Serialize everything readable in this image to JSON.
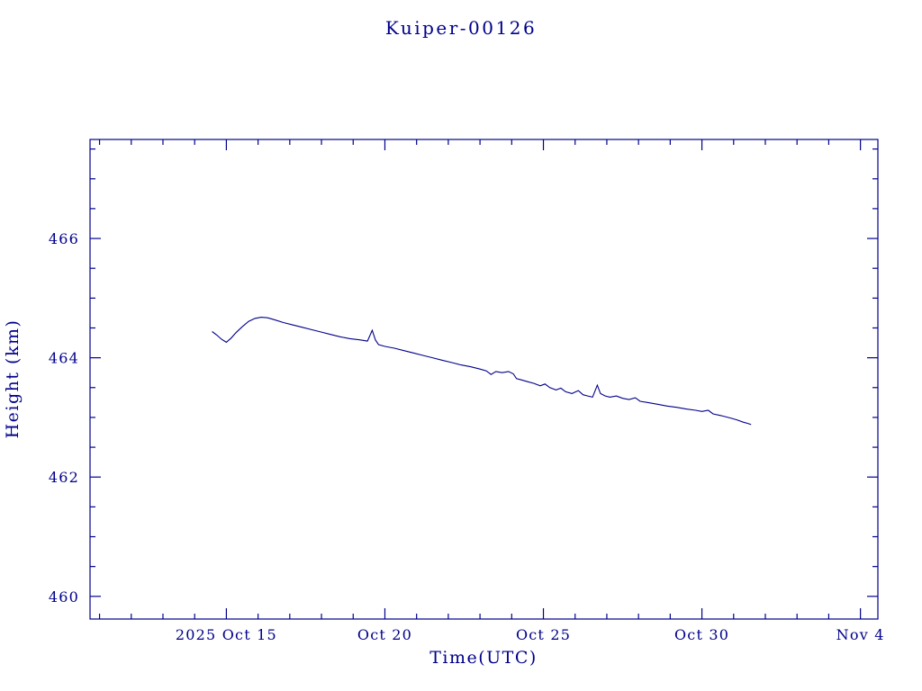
{
  "chart_data": {
    "type": "line",
    "title": "Kuiper-00126",
    "xlabel": "Time(UTC)",
    "ylabel": "Height (km)",
    "x_encoding": "day number, Oct 1 2025 = 1 (Nov 4 = 35)",
    "xlim": [
      10.7,
      35.55
    ],
    "ylim": [
      459.62,
      467.66
    ],
    "x_ticks": [
      {
        "value": 15,
        "label": "2025 Oct 15"
      },
      {
        "value": 20,
        "label": "Oct 20"
      },
      {
        "value": 25,
        "label": "Oct 25"
      },
      {
        "value": 30,
        "label": "Oct 30"
      },
      {
        "value": 35,
        "label": "Nov 4"
      }
    ],
    "y_ticks": [
      {
        "value": 460,
        "label": "460"
      },
      {
        "value": 462,
        "label": "462"
      },
      {
        "value": 464,
        "label": "464"
      },
      {
        "value": 466,
        "label": "466"
      }
    ],
    "x_minor_step": 1,
    "y_minor_step": 0.5,
    "grid": false,
    "legend": "none",
    "colors": {
      "line": "#00008b",
      "axis": "#00008b",
      "text": "#00008b",
      "background": "#ffffff"
    },
    "series": [
      {
        "name": "Kuiper-00126 height",
        "points": [
          [
            14.55,
            464.44
          ],
          [
            14.7,
            464.38
          ],
          [
            14.85,
            464.31
          ],
          [
            15.0,
            464.26
          ],
          [
            15.15,
            464.33
          ],
          [
            15.3,
            464.42
          ],
          [
            15.5,
            464.52
          ],
          [
            15.7,
            464.61
          ],
          [
            15.9,
            464.66
          ],
          [
            16.1,
            464.68
          ],
          [
            16.3,
            464.67
          ],
          [
            16.5,
            464.64
          ],
          [
            16.8,
            464.59
          ],
          [
            17.1,
            464.55
          ],
          [
            17.4,
            464.51
          ],
          [
            17.7,
            464.47
          ],
          [
            18.0,
            464.43
          ],
          [
            18.3,
            464.39
          ],
          [
            18.6,
            464.35
          ],
          [
            18.9,
            464.32
          ],
          [
            19.2,
            464.3
          ],
          [
            19.45,
            464.28
          ],
          [
            19.6,
            464.46
          ],
          [
            19.7,
            464.3
          ],
          [
            19.8,
            464.22
          ],
          [
            20.0,
            464.19
          ],
          [
            20.3,
            464.16
          ],
          [
            20.6,
            464.12
          ],
          [
            20.9,
            464.08
          ],
          [
            21.2,
            464.04
          ],
          [
            21.5,
            464.0
          ],
          [
            21.8,
            463.96
          ],
          [
            22.1,
            463.92
          ],
          [
            22.4,
            463.88
          ],
          [
            22.7,
            463.85
          ],
          [
            23.0,
            463.81
          ],
          [
            23.2,
            463.78
          ],
          [
            23.35,
            463.72
          ],
          [
            23.5,
            463.77
          ],
          [
            23.7,
            463.75
          ],
          [
            23.9,
            463.77
          ],
          [
            24.05,
            463.73
          ],
          [
            24.15,
            463.65
          ],
          [
            24.3,
            463.63
          ],
          [
            24.5,
            463.6
          ],
          [
            24.7,
            463.57
          ],
          [
            24.9,
            463.53
          ],
          [
            25.05,
            463.56
          ],
          [
            25.2,
            463.5
          ],
          [
            25.4,
            463.46
          ],
          [
            25.55,
            463.49
          ],
          [
            25.7,
            463.43
          ],
          [
            25.9,
            463.4
          ],
          [
            26.1,
            463.45
          ],
          [
            26.25,
            463.38
          ],
          [
            26.4,
            463.36
          ],
          [
            26.55,
            463.34
          ],
          [
            26.7,
            463.54
          ],
          [
            26.8,
            463.4
          ],
          [
            26.95,
            463.36
          ],
          [
            27.1,
            463.34
          ],
          [
            27.3,
            463.36
          ],
          [
            27.5,
            463.32
          ],
          [
            27.7,
            463.3
          ],
          [
            27.9,
            463.33
          ],
          [
            28.05,
            463.27
          ],
          [
            28.3,
            463.25
          ],
          [
            28.6,
            463.22
          ],
          [
            28.9,
            463.19
          ],
          [
            29.2,
            463.17
          ],
          [
            29.5,
            463.14
          ],
          [
            29.8,
            463.12
          ],
          [
            30.0,
            463.1
          ],
          [
            30.2,
            463.12
          ],
          [
            30.35,
            463.06
          ],
          [
            30.6,
            463.03
          ],
          [
            30.9,
            462.99
          ],
          [
            31.1,
            462.96
          ],
          [
            31.3,
            462.92
          ],
          [
            31.45,
            462.9
          ],
          [
            31.55,
            462.88
          ]
        ]
      }
    ]
  }
}
